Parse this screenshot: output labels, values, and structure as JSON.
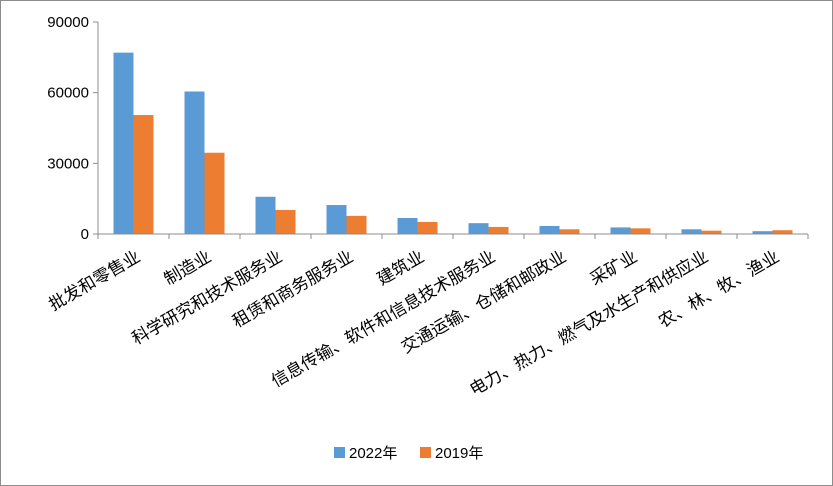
{
  "chart_data": {
    "type": "bar",
    "title": "",
    "xlabel": "",
    "ylabel": "",
    "ylim": [
      0,
      90000
    ],
    "yticks": [
      0,
      30000,
      60000,
      90000
    ],
    "grid": false,
    "legend_position": "bottom",
    "categories": [
      "批发和零售业",
      "制造业",
      "科学研究和技术服务业",
      "租赁和商务服务业",
      "建筑业",
      "信息传输、软件和信息技术服务业",
      "交通运输、仓储和邮政业",
      "采矿业",
      "电力、热力、燃气及水生产和供应业",
      "农、林、牧、渔业"
    ],
    "series": [
      {
        "name": "2022年",
        "color": "#5b9bd5",
        "values": [
          77000,
          60500,
          15800,
          12300,
          6800,
          4600,
          3400,
          2800,
          2000,
          1200
        ]
      },
      {
        "name": "2019年",
        "color": "#ed7d31",
        "values": [
          50500,
          34500,
          10200,
          7700,
          5100,
          3000,
          2000,
          2400,
          1400,
          1600
        ]
      }
    ]
  }
}
